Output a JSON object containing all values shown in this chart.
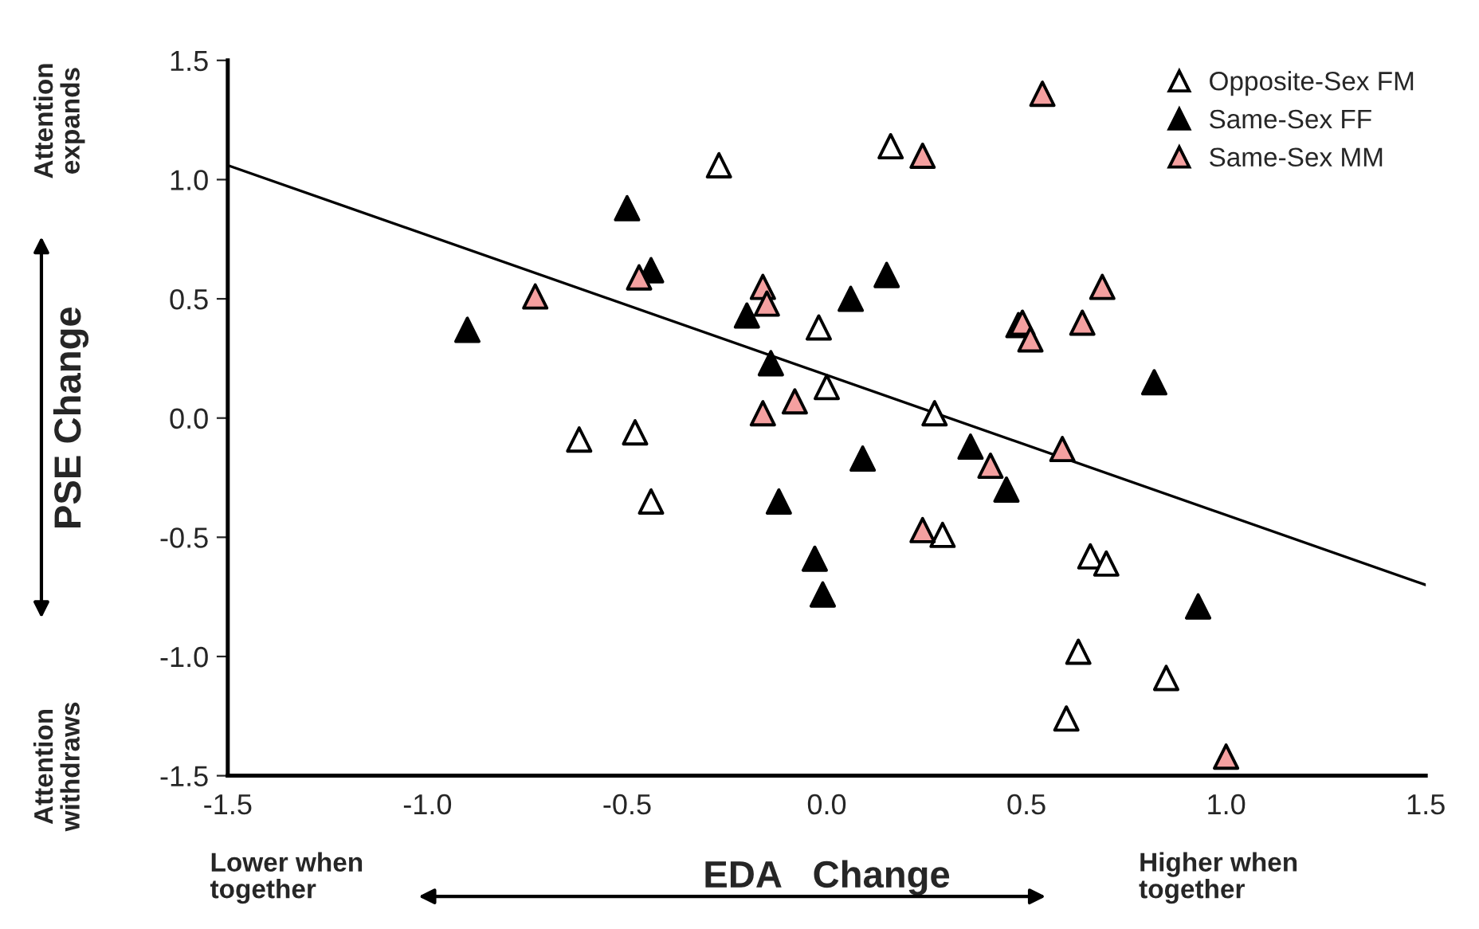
{
  "chart_data": {
    "type": "scatter",
    "xlabel": "EDA   Change",
    "ylabel": "PSE Change",
    "xlim": [
      -1.5,
      1.5
    ],
    "xticks": [
      {
        "value": -1.5,
        "label": "-1.5"
      },
      {
        "value": -1.0,
        "label": "-1.0"
      },
      {
        "value": -0.5,
        "label": "-0.5"
      },
      {
        "value": 0.0,
        "label": "0.0"
      },
      {
        "value": 0.5,
        "label": "0.5"
      },
      {
        "value": 1.0,
        "label": "1.0"
      },
      {
        "value": 1.5,
        "label": "1.5"
      }
    ],
    "ylim": [
      -1.5,
      1.5
    ],
    "yticks": [
      {
        "value": -1.5,
        "label": "-1.5"
      },
      {
        "value": -1.0,
        "label": "-1.0"
      },
      {
        "value": -0.5,
        "label": "-0.5"
      },
      {
        "value": 0.0,
        "label": "0.0"
      },
      {
        "value": 0.5,
        "label": "0.5"
      },
      {
        "value": 1.0,
        "label": "1.0"
      },
      {
        "value": 1.5,
        "label": "1.5"
      }
    ],
    "grid": false,
    "legend": "top right",
    "marker": "triangle",
    "annotations": [
      "Attention\nexpands",
      "Attention\nwithdraws",
      "Lower when\ntogether",
      "Higher when\ntogether"
    ],
    "series": [
      {
        "name": "Opposite-Sex FM",
        "color": "#ffffff",
        "x": [
          -0.27,
          0.16,
          -0.02,
          0.0,
          -0.62,
          -0.48,
          -0.44,
          0.27,
          0.29,
          0.48,
          0.66,
          0.7,
          0.63,
          0.85,
          0.6
        ],
        "values": [
          1.06,
          1.14,
          0.38,
          0.13,
          -0.09,
          -0.06,
          -0.35,
          0.02,
          -0.49,
          0.39,
          -0.58,
          -0.61,
          -0.98,
          -1.09,
          -1.26
        ]
      },
      {
        "name": "Same-Sex FF",
        "color": "#000000",
        "x": [
          -0.9,
          -0.5,
          -0.44,
          -0.2,
          -0.14,
          0.06,
          0.15,
          -0.12,
          0.09,
          -0.03,
          -0.01,
          0.36,
          0.45,
          0.82,
          0.93
        ],
        "values": [
          0.37,
          0.88,
          0.62,
          0.43,
          0.23,
          0.5,
          0.6,
          -0.35,
          -0.17,
          -0.59,
          -0.74,
          -0.12,
          -0.3,
          0.15,
          -0.79
        ]
      },
      {
        "name": "Same-Sex MM",
        "color": "#f4a0a0",
        "x": [
          -0.73,
          -0.47,
          -0.16,
          -0.15,
          -0.16,
          -0.08,
          0.24,
          0.54,
          0.24,
          0.41,
          0.49,
          0.51,
          0.64,
          0.69,
          0.59,
          1.0
        ],
        "values": [
          0.51,
          0.59,
          0.55,
          0.48,
          0.02,
          0.07,
          1.1,
          1.36,
          -0.47,
          -0.2,
          0.4,
          0.33,
          0.4,
          0.55,
          -0.13,
          -1.42
        ]
      },
      {
        "type": "line",
        "color": "#000000",
        "marker": "none",
        "x": [
          -1.5,
          1.5
        ],
        "values": [
          1.06,
          -0.7
        ]
      }
    ]
  }
}
